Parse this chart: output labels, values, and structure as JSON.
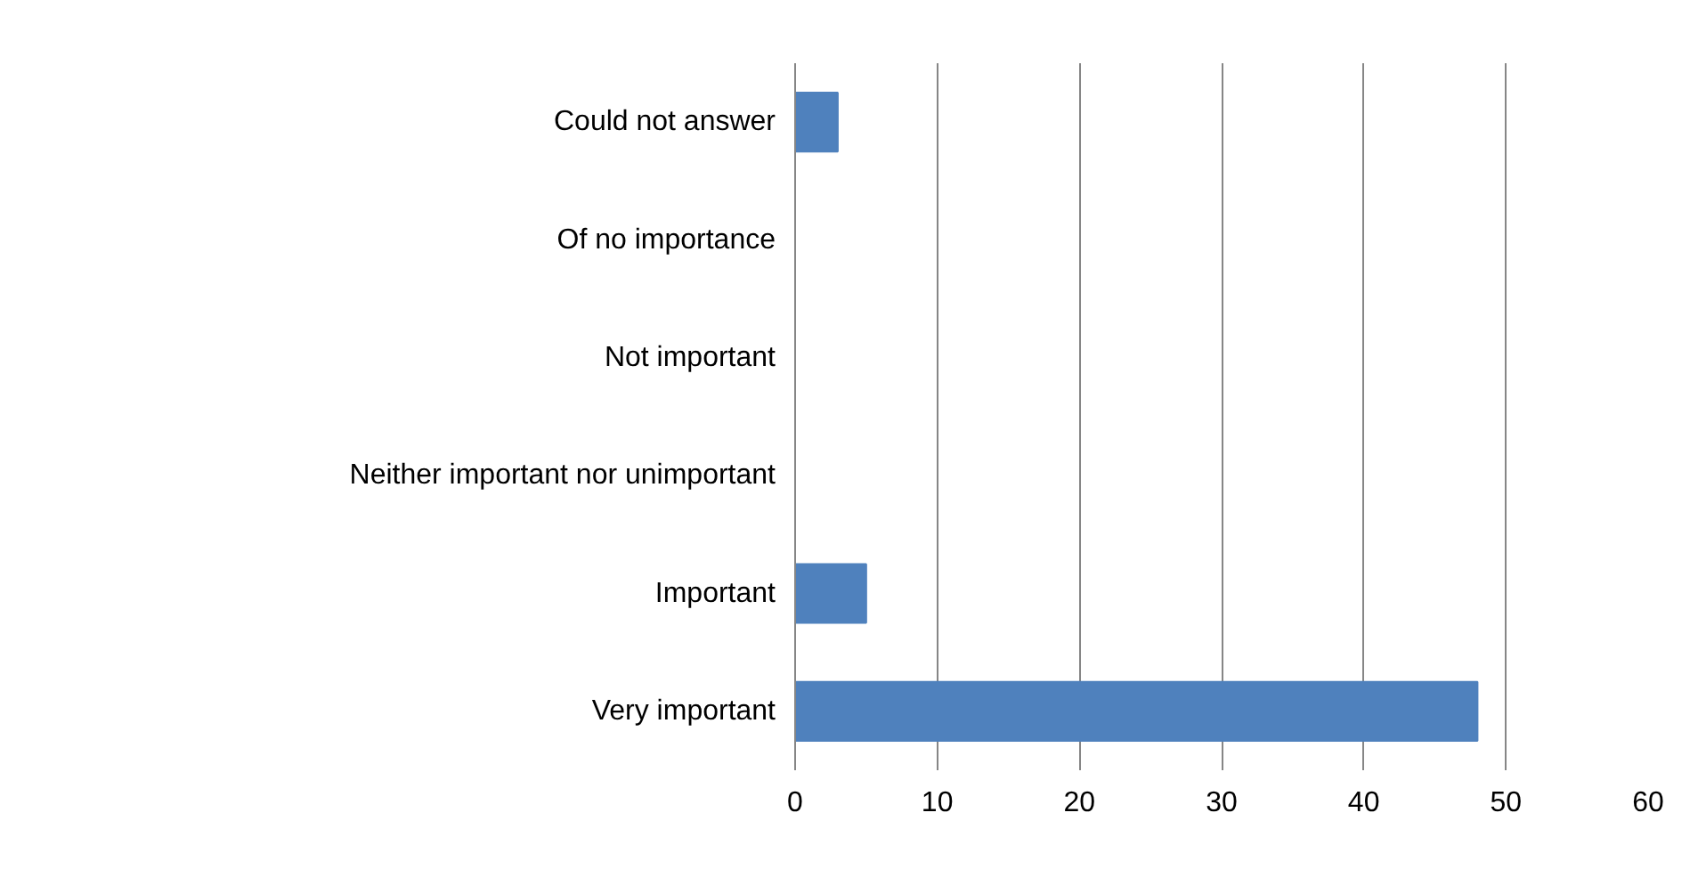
{
  "chart_data": {
    "type": "bar",
    "orientation": "horizontal",
    "categories": [
      "Could not answer",
      "Of no importance",
      "Not important",
      "Neither important nor unimportant",
      "Important",
      "Very important"
    ],
    "values": [
      3,
      0,
      0,
      0,
      5,
      48
    ],
    "color": "#4f81bd",
    "xlim": [
      0,
      60
    ],
    "xticks": [
      0,
      10,
      20,
      30,
      40,
      50,
      60
    ],
    "grid": "x"
  }
}
